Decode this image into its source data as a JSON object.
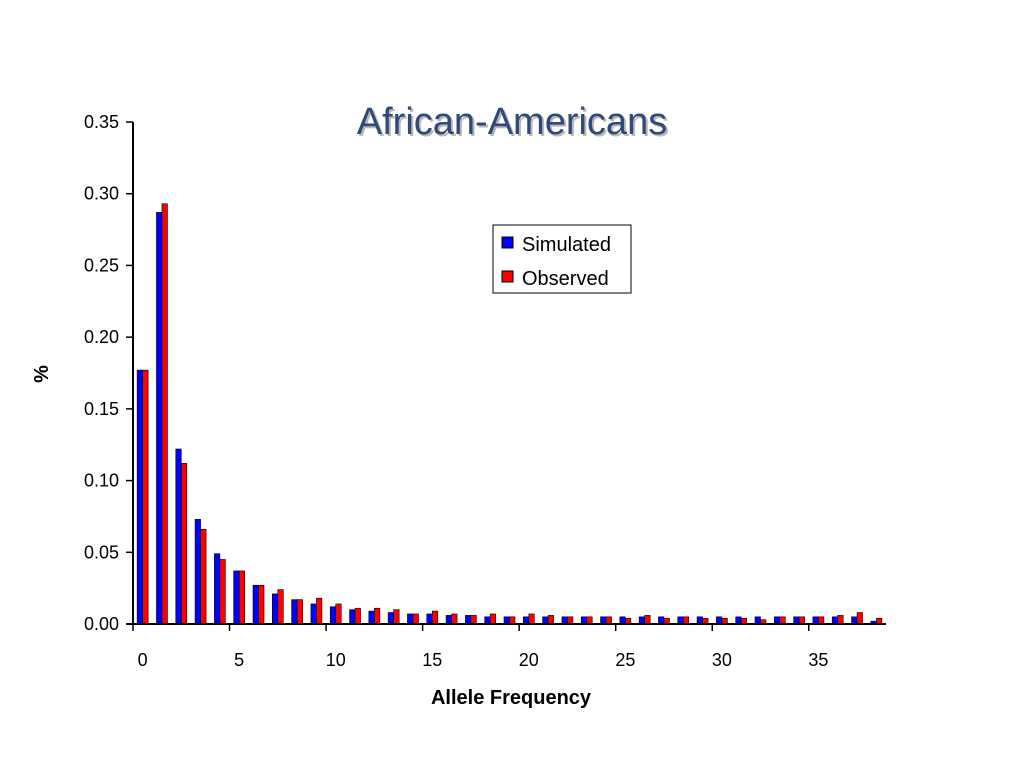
{
  "chart_data": {
    "type": "bar",
    "title": "African-Americans",
    "xlabel": "Allele Frequency",
    "ylabel": "%",
    "ylim": [
      0,
      0.35
    ],
    "yticks": [
      "0.00",
      "0.05",
      "0.10",
      "0.15",
      "0.20",
      "0.25",
      "0.30",
      "0.35"
    ],
    "xticks": [
      "0",
      "5",
      "10",
      "15",
      "20",
      "25",
      "30",
      "35"
    ],
    "x": [
      0,
      1,
      2,
      3,
      4,
      5,
      6,
      7,
      8,
      9,
      10,
      11,
      12,
      13,
      14,
      15,
      16,
      17,
      18,
      19,
      20,
      21,
      22,
      23,
      24,
      25,
      26,
      27,
      28,
      29,
      30,
      31,
      32,
      33,
      34,
      35,
      36,
      37,
      38
    ],
    "series": [
      {
        "name": "Simulated",
        "color": "#0000FF",
        "values": [
          0.177,
          0.287,
          0.122,
          0.073,
          0.049,
          0.037,
          0.027,
          0.021,
          0.017,
          0.014,
          0.012,
          0.01,
          0.009,
          0.008,
          0.007,
          0.007,
          0.006,
          0.006,
          0.005,
          0.005,
          0.005,
          0.005,
          0.005,
          0.005,
          0.005,
          0.005,
          0.005,
          0.005,
          0.005,
          0.005,
          0.005,
          0.005,
          0.005,
          0.005,
          0.005,
          0.005,
          0.005,
          0.005,
          0.002
        ]
      },
      {
        "name": "Observed",
        "color": "#FF0000",
        "values": [
          0.177,
          0.293,
          0.112,
          0.066,
          0.045,
          0.037,
          0.027,
          0.024,
          0.017,
          0.018,
          0.014,
          0.011,
          0.011,
          0.01,
          0.007,
          0.009,
          0.007,
          0.006,
          0.007,
          0.005,
          0.007,
          0.006,
          0.005,
          0.005,
          0.005,
          0.004,
          0.006,
          0.004,
          0.005,
          0.004,
          0.004,
          0.004,
          0.003,
          0.005,
          0.005,
          0.005,
          0.006,
          0.008,
          0.004
        ]
      }
    ],
    "legend_position": "top-right",
    "grid": false
  }
}
